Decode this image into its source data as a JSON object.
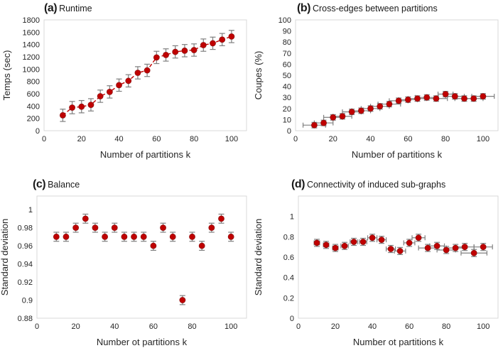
{
  "figure": {
    "description": "Four-panel evaluation figure of graph partitioning versus number of partitions k",
    "colors": {
      "marker": "#c00000",
      "marker_edge": "#921515",
      "error_bar": "#7f7f7f",
      "trend_line": "#c00000",
      "plot_border": "#d9d9d9",
      "text": "#262626"
    }
  },
  "chart_data": [
    {
      "type": "scatter",
      "panel": "a",
      "tag": "(a)",
      "title": "Runtime",
      "xlabel": "Number of partitions k",
      "ylabel": "Temps (sec)",
      "x": [
        10,
        15,
        20,
        25,
        30,
        35,
        40,
        45,
        50,
        55,
        60,
        65,
        70,
        75,
        80,
        85,
        90,
        95,
        100
      ],
      "y": [
        250,
        375,
        390,
        420,
        560,
        630,
        740,
        810,
        940,
        980,
        1190,
        1230,
        1280,
        1300,
        1310,
        1390,
        1420,
        1480,
        1530
      ],
      "yerr": 100,
      "xerr": 0,
      "xlim": [
        0,
        108
      ],
      "ylim": [
        0,
        1800
      ],
      "xticks": [
        0,
        20,
        40,
        60,
        80,
        100
      ],
      "yticks": [
        0,
        200,
        400,
        600,
        800,
        1000,
        1200,
        1400,
        1600,
        1800
      ],
      "line": "dashed",
      "legend": "none",
      "grid": false
    },
    {
      "type": "scatter",
      "panel": "b",
      "tag": "(b)",
      "title": "Cross-edges between partitions",
      "xlabel": "Number of partitions k",
      "ylabel": "Coupes (%)",
      "x": [
        10,
        15,
        20,
        25,
        30,
        35,
        40,
        45,
        50,
        55,
        60,
        65,
        70,
        75,
        80,
        85,
        90,
        95,
        100
      ],
      "y": [
        5,
        7,
        12,
        13,
        17,
        18,
        20,
        22,
        24,
        27,
        28,
        29,
        30,
        29,
        33,
        31,
        29,
        29,
        31
      ],
      "yerr": 2.5,
      "xerr": [
        6,
        5,
        5,
        5,
        5,
        5,
        5,
        5,
        6,
        5,
        5,
        5,
        6,
        6,
        4,
        5,
        5,
        5,
        6
      ],
      "xlim": [
        0,
        108
      ],
      "ylim": [
        0,
        100
      ],
      "xticks": [
        0,
        20,
        40,
        60,
        80,
        100
      ],
      "yticks": [
        0,
        10,
        20,
        30,
        40,
        50,
        60,
        70,
        80,
        90,
        100
      ],
      "line": "none",
      "legend": "none",
      "grid": false
    },
    {
      "type": "scatter",
      "panel": "c",
      "tag": "(c)",
      "title": "Balance",
      "xlabel": "Number ot partitions k",
      "ylabel": "Standard deviation",
      "x": [
        10,
        15,
        20,
        25,
        30,
        35,
        40,
        45,
        50,
        55,
        60,
        65,
        70,
        75,
        80,
        85,
        90,
        95,
        100
      ],
      "y": [
        0.97,
        0.97,
        0.98,
        0.99,
        0.98,
        0.97,
        0.98,
        0.97,
        0.97,
        0.97,
        0.96,
        0.98,
        0.97,
        0.9,
        0.97,
        0.96,
        0.98,
        0.99,
        0.97
      ],
      "yerr": 0.005,
      "xerr": 0,
      "xlim": [
        0,
        108
      ],
      "ylim": [
        0.88,
        1.015
      ],
      "xticks": [
        0,
        20,
        40,
        60,
        80,
        100
      ],
      "yticks": [
        0.88,
        0.9,
        0.92,
        0.94,
        0.96,
        0.98,
        1
      ],
      "line": "none",
      "legend": "none",
      "grid": false
    },
    {
      "type": "scatter",
      "panel": "d",
      "tag": "(d)",
      "title": "Connectivity of induced sub-graphs",
      "xlabel": "Number ot partitions k",
      "ylabel": "Standard deviation",
      "x": [
        10,
        15,
        20,
        25,
        30,
        35,
        40,
        45,
        50,
        55,
        60,
        65,
        70,
        75,
        80,
        85,
        90,
        95,
        100
      ],
      "y": [
        0.74,
        0.72,
        0.69,
        0.71,
        0.75,
        0.75,
        0.79,
        0.77,
        0.68,
        0.66,
        0.74,
        0.79,
        0.69,
        0.71,
        0.67,
        0.69,
        0.7,
        0.64,
        0.7
      ],
      "yerr": 0.035,
      "xerr": [
        1.5,
        1.5,
        1.5,
        2,
        2,
        2,
        2.5,
        2.5,
        2.5,
        3,
        3,
        3.5,
        5,
        4,
        5,
        5,
        5,
        7,
        5
      ],
      "xlim": [
        0,
        108
      ],
      "ylim": [
        0,
        1.2
      ],
      "xticks": [
        0,
        20,
        40,
        60,
        80,
        100
      ],
      "yticks": [
        0,
        0.2,
        0.4,
        0.6,
        0.8,
        1
      ],
      "line": "none",
      "legend": "none",
      "grid": false
    }
  ]
}
